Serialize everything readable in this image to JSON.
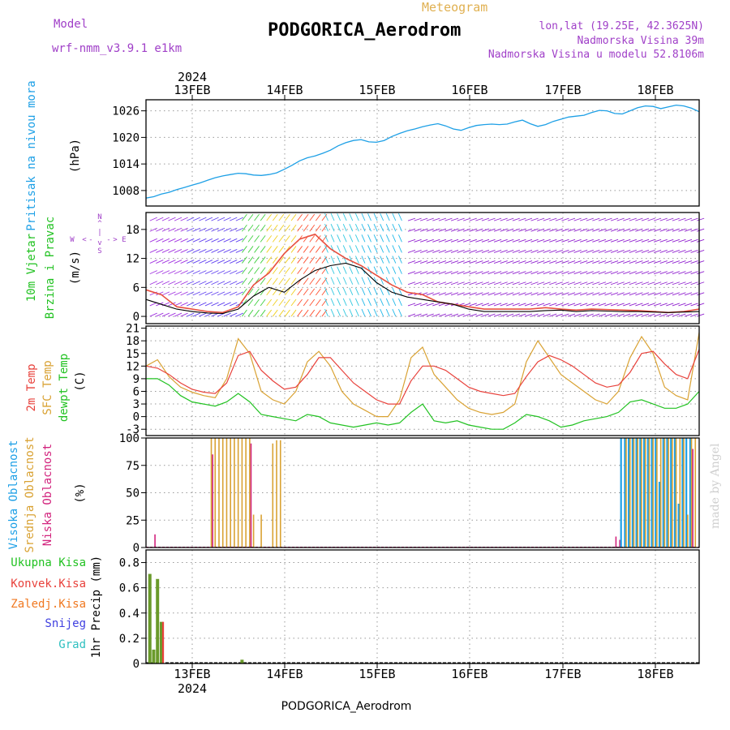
{
  "header": {
    "model_label": "Model",
    "model_name": "wrf-nmm_v3.9.1 e1km",
    "meteogram_label": "Meteogram",
    "station": "PODGORICA_Aerodrom",
    "lonlat": "lon,lat (19.25E, 42.3625N)",
    "altitude": "Nadmorska Visina 39m",
    "model_altitude": "Nadmorska Visina u modelu 52.8106m",
    "year": "2024",
    "footer_station": "PODGORICA_Aerodrom",
    "credit": "made by Angel"
  },
  "colors": {
    "pressure": "#1ea0e6",
    "temp2m": "#e8423c",
    "sfc": "#d9a233",
    "dew": "#22c222",
    "high": "#1ea0e6",
    "mid": "#d9a233",
    "low": "#d2237d",
    "precip": "#6a9a2a",
    "conv": "#e8423c",
    "frozen": "#f07820",
    "snow": "#4040e0",
    "hail": "#30c0c0",
    "speed": "#000000",
    "gust": "#e85040"
  },
  "chart_data": [
    {
      "id": "pressure",
      "type": "line",
      "ylabel_lines": [
        "Pritisak na nivou mora",
        "(hPa)"
      ],
      "yticks": [
        1008,
        1014,
        1020,
        1026
      ],
      "ylim": [
        1004.5,
        1028.5
      ],
      "x_ticks": [
        "13FEB",
        "14FEB",
        "15FEB",
        "16FEB",
        "17FEB",
        "18FEB"
      ],
      "x": [
        0,
        2,
        4,
        6,
        8,
        10,
        12,
        14,
        16,
        18,
        20,
        22,
        24,
        26,
        28,
        30,
        32,
        34,
        36,
        38,
        40,
        42,
        44,
        46,
        48,
        50,
        52,
        54,
        56,
        58,
        60,
        62,
        64,
        66,
        68,
        70,
        72,
        74,
        76,
        78,
        80,
        82,
        84,
        86,
        88,
        90,
        92,
        94,
        96,
        98,
        100,
        102,
        104,
        106,
        108,
        110,
        112,
        114,
        116,
        118,
        120,
        122,
        124,
        126,
        128,
        130,
        132,
        134,
        136,
        138,
        140,
        142,
        144
      ],
      "values": [
        1006.3,
        1006.6,
        1007.2,
        1007.6,
        1008.2,
        1008.7,
        1009.2,
        1009.7,
        1010.3,
        1010.9,
        1011.3,
        1011.6,
        1011.9,
        1011.8,
        1011.5,
        1011.4,
        1011.6,
        1012.0,
        1012.8,
        1013.7,
        1014.7,
        1015.4,
        1015.8,
        1016.4,
        1017.1,
        1018.1,
        1018.8,
        1019.3,
        1019.5,
        1019.0,
        1018.9,
        1019.3,
        1020.2,
        1020.9,
        1021.5,
        1021.9,
        1022.4,
        1022.8,
        1023.1,
        1022.6,
        1021.9,
        1021.6,
        1022.2,
        1022.7,
        1022.9,
        1023.0,
        1022.9,
        1023.0,
        1023.5,
        1023.9,
        1023.1,
        1022.5,
        1022.9,
        1023.6,
        1024.1,
        1024.6,
        1024.8,
        1025.0,
        1025.6,
        1026.1,
        1026.0,
        1025.4,
        1025.3,
        1026.0,
        1026.7,
        1027.1,
        1027.0,
        1026.5,
        1026.9,
        1027.3,
        1027.1,
        1026.6,
        1025.8
      ]
    },
    {
      "id": "wind",
      "type": "line",
      "ylabel_lines": [
        "10m Vjetar",
        "Brzina i Pravac",
        "(m/s)"
      ],
      "compass_labels": [
        "N",
        "E",
        "S",
        "W"
      ],
      "compass_arrows": [
        "^",
        "|",
        "v",
        "<",
        "-",
        "-",
        ">"
      ],
      "yticks": [
        0,
        6,
        12,
        18
      ],
      "ylim": [
        -1.5,
        21.5
      ],
      "x": [
        0,
        4,
        8,
        12,
        16,
        20,
        24,
        28,
        32,
        36,
        40,
        44,
        48,
        52,
        56,
        60,
        64,
        68,
        72,
        76,
        80,
        84,
        88,
        92,
        96,
        100,
        104,
        108,
        112,
        116,
        120,
        124,
        128,
        132,
        136,
        140,
        144
      ],
      "series": [
        {
          "values": [
            3.5,
            2.5,
            1.5,
            1.0,
            0.7,
            0.6,
            1.5,
            4.2,
            6.0,
            5.0,
            7.5,
            9.5,
            10.5,
            11.0,
            10.0,
            7.0,
            5.0,
            4.0,
            3.5,
            3.0,
            2.5,
            1.5,
            1.0,
            1.0,
            1.0,
            1.0,
            1.2,
            1.3,
            1.0,
            1.2,
            1.1,
            1.0,
            1.0,
            0.9,
            0.8,
            0.9,
            1.0
          ]
        },
        {
          "values": [
            5.5,
            4.5,
            2.0,
            1.5,
            1.0,
            0.8,
            2.0,
            6.5,
            9.0,
            13.0,
            16.0,
            17.0,
            14.0,
            12.0,
            10.5,
            8.5,
            6.5,
            5.0,
            4.5,
            3.0,
            2.5,
            2.0,
            1.5,
            1.5,
            1.5,
            1.5,
            1.8,
            1.5,
            1.3,
            1.5,
            1.4,
            1.3,
            1.2,
            1.0,
            0.8,
            1.0,
            1.5
          ]
        }
      ]
    },
    {
      "id": "temperature",
      "type": "line",
      "ylabel_lines": [
        "2m Temp",
        "SFC Temp",
        "dewpt Temp",
        "(C)"
      ],
      "yticks": [
        -3,
        0,
        3,
        6,
        9,
        12,
        15,
        18,
        21
      ],
      "ylim": [
        -4.5,
        21.5
      ],
      "x": [
        0,
        3,
        6,
        9,
        12,
        15,
        18,
        21,
        24,
        27,
        30,
        33,
        36,
        39,
        42,
        45,
        48,
        51,
        54,
        57,
        60,
        63,
        66,
        69,
        72,
        75,
        78,
        81,
        84,
        87,
        90,
        93,
        96,
        99,
        102,
        105,
        108,
        111,
        114,
        117,
        120,
        123,
        126,
        129,
        132,
        135,
        138,
        141,
        144
      ],
      "series": [
        {
          "values": [
            12,
            11.5,
            10,
            8,
            6.5,
            5.8,
            5.5,
            8,
            14.5,
            15.5,
            11,
            8.5,
            6.5,
            7,
            10,
            14,
            14,
            11,
            8,
            6,
            4,
            3,
            3,
            8.5,
            12,
            12,
            11,
            9,
            7,
            6,
            5.5,
            5,
            5.5,
            9.5,
            13,
            14.5,
            13.5,
            12,
            10,
            8,
            7,
            7.5,
            10.5,
            15,
            15.5,
            12.5,
            10,
            9,
            16
          ]
        },
        {
          "values": [
            12,
            13.5,
            9.5,
            7,
            5.8,
            5,
            4.5,
            9,
            18.5,
            15,
            6,
            4,
            3,
            6,
            13,
            15.5,
            12,
            6,
            3,
            1.5,
            0,
            0,
            4,
            14,
            16.5,
            10,
            7,
            4,
            2,
            1,
            0.5,
            1,
            3,
            13,
            18,
            14,
            10,
            8,
            6,
            4,
            3,
            6,
            14,
            19,
            15,
            7,
            5,
            4,
            20
          ]
        },
        {
          "values": [
            9,
            9,
            7.5,
            5,
            3.5,
            3,
            2.5,
            3.5,
            5.5,
            3.5,
            0.5,
            0,
            -0.5,
            -1,
            0.5,
            0,
            -1.5,
            -2,
            -2.5,
            -2,
            -1.5,
            -2,
            -1.5,
            1,
            3,
            -1,
            -1.5,
            -1,
            -2,
            -2.5,
            -3,
            -3,
            -1.5,
            0.5,
            0,
            -1,
            -2.5,
            -2,
            -1,
            -0.5,
            0,
            1,
            3.5,
            4,
            3,
            2,
            2,
            3,
            6
          ]
        }
      ]
    },
    {
      "id": "clouds",
      "type": "bar",
      "ylabel_lines": [
        "Visoka Oblacnost",
        "Srednja Oblacnost",
        "Niska Oblacnost",
        "(%)"
      ],
      "yticks": [
        0,
        25,
        50,
        75,
        100
      ],
      "ylim": [
        0,
        100
      ],
      "x": [
        2,
        17,
        18,
        19,
        20,
        21,
        22,
        23,
        24,
        25,
        26,
        27,
        28,
        30,
        33,
        34,
        35,
        122,
        123,
        124,
        125,
        126,
        127,
        128,
        129,
        130,
        131,
        132,
        133,
        134,
        135,
        136,
        137,
        138,
        139,
        140,
        141,
        142,
        143
      ],
      "series": [
        {
          "values": [
            0,
            0,
            0,
            0,
            0,
            0,
            0,
            0,
            0,
            0,
            0,
            0,
            0,
            0,
            0,
            0,
            0,
            0,
            0,
            100,
            100,
            100,
            100,
            100,
            100,
            100,
            100,
            100,
            100,
            60,
            100,
            100,
            100,
            100,
            40,
            100,
            100,
            100,
            0
          ]
        },
        {
          "values": [
            0,
            100,
            100,
            100,
            100,
            100,
            100,
            100,
            100,
            100,
            100,
            100,
            30,
            30,
            95,
            98,
            98,
            0,
            0,
            0,
            100,
            100,
            100,
            100,
            100,
            100,
            100,
            100,
            100,
            100,
            100,
            100,
            100,
            100,
            100,
            100,
            30,
            100,
            100
          ]
        },
        {
          "values": [
            12,
            85,
            0,
            0,
            0,
            0,
            0,
            0,
            0,
            0,
            0,
            95,
            0,
            0,
            0,
            0,
            0,
            10,
            7,
            0,
            0,
            0,
            0,
            0,
            0,
            0,
            0,
            0,
            0,
            0,
            0,
            0,
            0,
            0,
            0,
            0,
            0,
            90,
            0
          ]
        }
      ]
    },
    {
      "id": "precip",
      "type": "bar",
      "ylabel_lines": [
        "1hr Precip (mm)"
      ],
      "legend": [
        "Ukupna Kisa",
        "Konvek.Kisa",
        "Zaledj.Kisa",
        "Snijeg",
        "Grad"
      ],
      "yticks": [
        0,
        0.2,
        0.4,
        0.6,
        0.8
      ],
      "ylim": [
        0,
        0.9
      ],
      "x": [
        1,
        2,
        3,
        4,
        5,
        25
      ],
      "series": [
        {
          "values": [
            0.71,
            0.11,
            0.67,
            0.33,
            0,
            0.03
          ]
        },
        {
          "values": [
            0,
            0,
            0,
            0.33,
            0,
            0
          ]
        }
      ]
    }
  ]
}
